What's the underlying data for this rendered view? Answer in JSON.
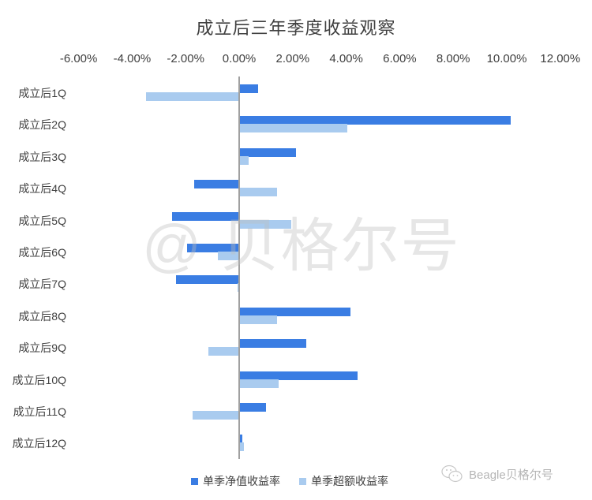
{
  "chart_data": {
    "type": "bar",
    "orientation": "horizontal",
    "title": "成立后三年季度收益观察",
    "xlabel": "",
    "ylabel": "",
    "xlim": [
      -6,
      12
    ],
    "x_ticks": [
      "-6.00%",
      "-4.00%",
      "-2.00%",
      "0.00%",
      "2.00%",
      "4.00%",
      "6.00%",
      "8.00%",
      "10.00%",
      "12.00%"
    ],
    "x_tick_values": [
      -6,
      -4,
      -2,
      0,
      2,
      4,
      6,
      8,
      10,
      12
    ],
    "x_axis_position": "top",
    "grid": false,
    "legend_position": "bottom",
    "categories": [
      "成立后1Q",
      "成立后2Q",
      "成立后3Q",
      "成立后4Q",
      "成立后5Q",
      "成立后6Q",
      "成立后7Q",
      "成立后8Q",
      "成立后9Q",
      "成立后10Q",
      "成立后11Q",
      "成立后12Q"
    ],
    "series": [
      {
        "name": "单季净值收益率",
        "color": "#3a7de3",
        "values": [
          0.71,
          10.15,
          2.12,
          -1.69,
          -2.5,
          -1.96,
          -2.35,
          4.15,
          2.52,
          4.42,
          0.99,
          0.13
        ]
      },
      {
        "name": "单季超额收益率",
        "color": "#a9cbef",
        "values": [
          -3.48,
          4.03,
          0.36,
          1.42,
          1.94,
          -0.79,
          -0.05,
          1.42,
          -1.15,
          1.47,
          -1.73,
          0.18
        ]
      }
    ],
    "unit": "%"
  },
  "watermark": "@ 贝格尔号",
  "brand": "Beagle贝格尔号",
  "colors": {
    "net": "#3a7de3",
    "excess": "#a9cbef",
    "axis": "#a0a0a0",
    "text": "#404040"
  }
}
